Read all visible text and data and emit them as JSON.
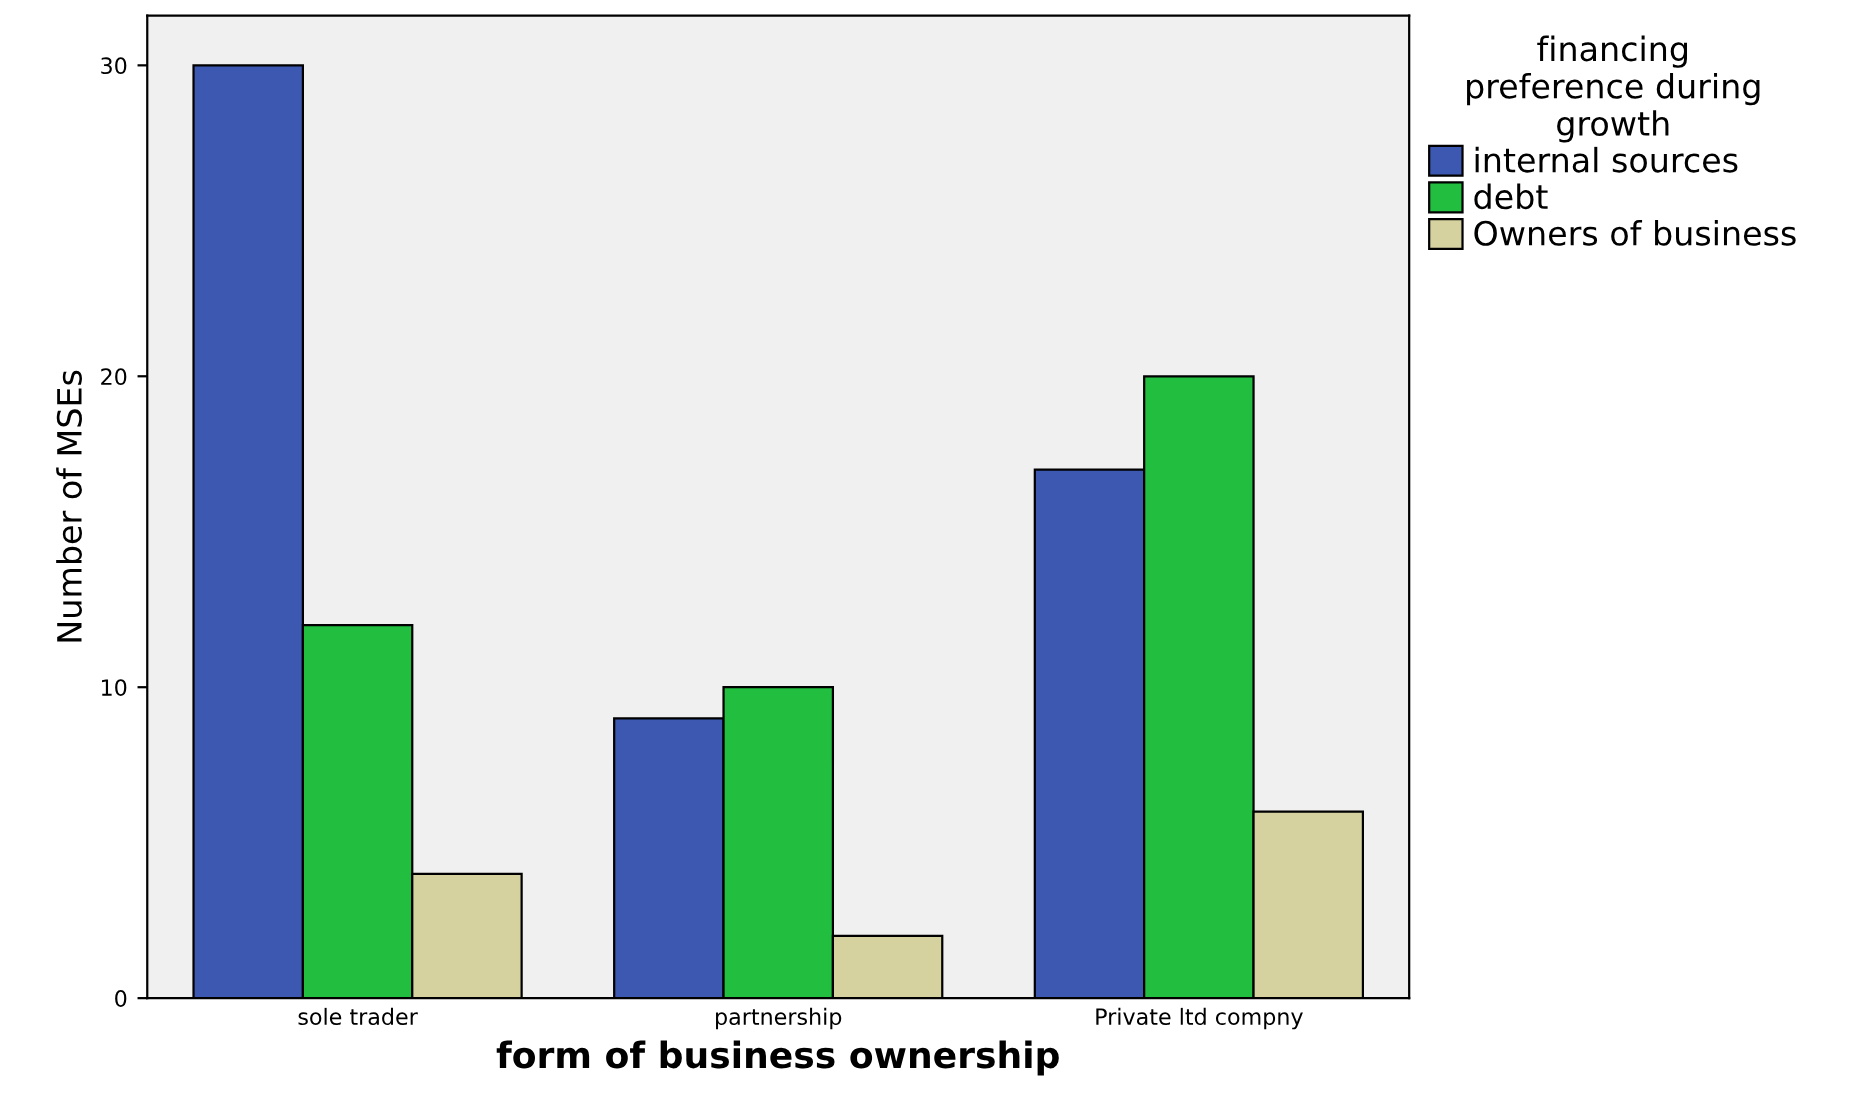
{
  "chart_data": {
    "type": "bar",
    "xlabel": "form of business ownership",
    "ylabel": "Number of MSEs",
    "legend_title": "financing\npreference during\ngrowth",
    "categories": [
      "sole trader",
      "partnership",
      "Private ltd compny"
    ],
    "series": [
      {
        "name": "internal sources",
        "color": "#3c58b0",
        "values": [
          30,
          9,
          17
        ]
      },
      {
        "name": "debt",
        "color": "#22be40",
        "values": [
          12,
          10,
          20
        ]
      },
      {
        "name": "Owners of business",
        "color": "#d6d2a0",
        "values": [
          4,
          2,
          6
        ]
      }
    ],
    "ylim": [
      0,
      31.6
    ],
    "yticks": [
      0,
      10,
      20,
      30
    ],
    "grid": false,
    "legend": "top right"
  }
}
